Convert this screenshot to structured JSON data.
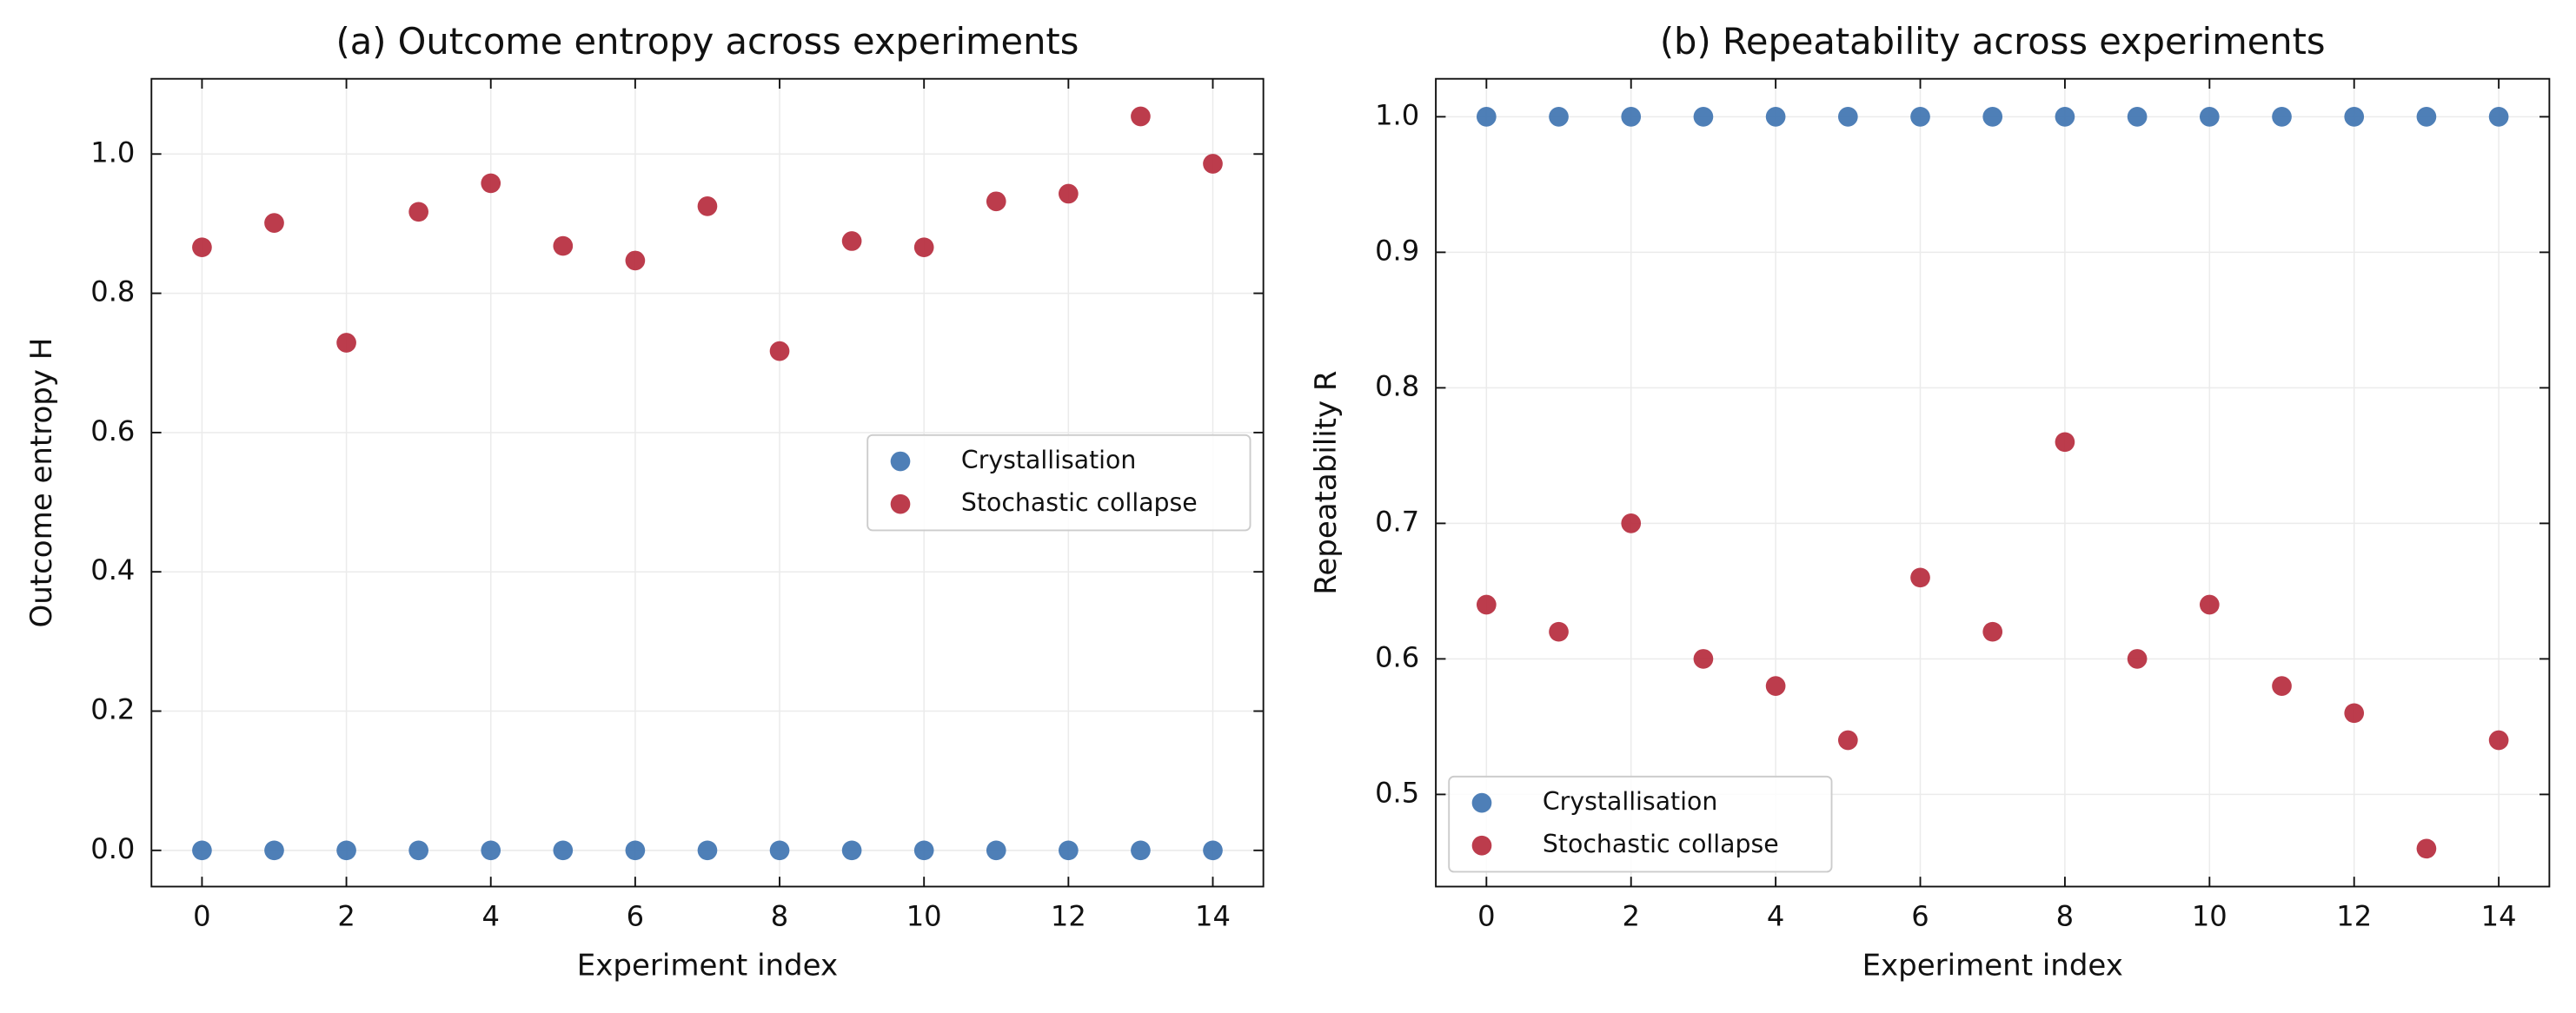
{
  "chart_data": [
    {
      "type": "scatter",
      "title": "(a) Outcome entropy across experiments",
      "xlabel": "Experiment index",
      "ylabel": "Outcome entropy H",
      "x": [
        0,
        1,
        2,
        3,
        4,
        5,
        6,
        7,
        8,
        9,
        10,
        11,
        12,
        13,
        14
      ],
      "series": [
        {
          "name": "Crystallisation",
          "color": "#3f74b1",
          "values": [
            0,
            0,
            0,
            0,
            0,
            0,
            0,
            0,
            0,
            0,
            0,
            0,
            0,
            0,
            0
          ]
        },
        {
          "name": "Stochastic collapse",
          "color": "#b62b3d",
          "values": [
            0.866,
            0.901,
            0.729,
            0.917,
            0.958,
            0.868,
            0.847,
            0.925,
            0.717,
            0.875,
            0.866,
            0.932,
            0.943,
            1.054,
            0.986
          ]
        }
      ],
      "xlim": [
        -0.7,
        14.7
      ],
      "xticks": [
        0,
        2,
        4,
        6,
        8,
        10,
        12,
        14
      ],
      "ylim": [
        -0.052,
        1.108
      ],
      "yticks": [
        {
          "value": 0,
          "label": "0.0"
        },
        0.2,
        0.4,
        0.6,
        0.8,
        {
          "value": 1,
          "label": "1.0"
        }
      ],
      "grid": true,
      "legend": "center right"
    },
    {
      "type": "scatter",
      "title": "(b) Repeatability across experiments",
      "xlabel": "Experiment index",
      "ylabel": "Repeatability R",
      "x": [
        0,
        1,
        2,
        3,
        4,
        5,
        6,
        7,
        8,
        9,
        10,
        11,
        12,
        13,
        14
      ],
      "series": [
        {
          "name": "Crystallisation",
          "color": "#3f74b1",
          "values": [
            1,
            1,
            1,
            1,
            1,
            1,
            1,
            1,
            1,
            1,
            1,
            1,
            1,
            1,
            1
          ]
        },
        {
          "name": "Stochastic collapse",
          "color": "#b62b3d",
          "values": [
            0.64,
            0.62,
            0.7,
            0.6,
            0.58,
            0.54,
            0.66,
            0.62,
            0.76,
            0.6,
            0.64,
            0.58,
            0.56,
            0.46,
            0.54
          ]
        }
      ],
      "xlim": [
        -0.7,
        14.7
      ],
      "xticks": [
        0,
        2,
        4,
        6,
        8,
        10,
        12,
        14
      ],
      "ylim": [
        0.432,
        1.028
      ],
      "yticks": [
        0.5,
        0.6,
        0.7,
        0.8,
        0.9,
        {
          "value": 1,
          "label": "1.0"
        }
      ],
      "grid": true,
      "legend": "lower left"
    }
  ]
}
